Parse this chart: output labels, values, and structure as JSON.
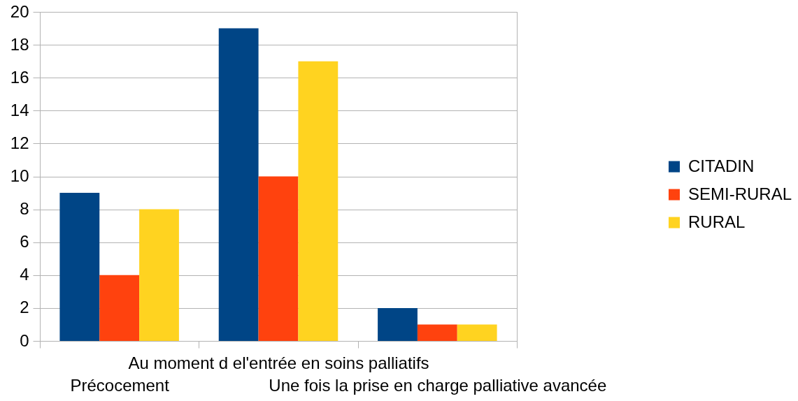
{
  "chart_data": {
    "type": "bar",
    "categories": [
      "Précocement",
      "Au moment d el'entrée en soins palliatifs",
      "Une fois la prise en charge palliative avancée"
    ],
    "series": [
      {
        "name": "CITADIN",
        "color": "#004586",
        "values": [
          9,
          19,
          2
        ]
      },
      {
        "name": "SEMI-RURAL",
        "color": "#ff420e",
        "values": [
          4,
          10,
          1
        ]
      },
      {
        "name": "RURAL",
        "color": "#ffd320",
        "values": [
          8,
          17,
          1
        ]
      }
    ],
    "ylim": [
      0,
      20
    ],
    "yticks": [
      0,
      2,
      4,
      6,
      8,
      10,
      12,
      14,
      16,
      18,
      20
    ],
    "grid": "y",
    "legend": "right"
  }
}
